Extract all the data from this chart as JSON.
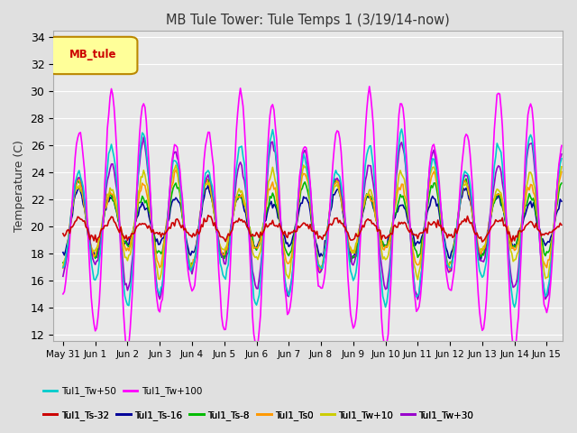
{
  "title": "MB Tule Tower: Tule Temps 1 (3/19/14-now)",
  "ylabel": "Temperature (C)",
  "ylim": [
    11.5,
    34.5
  ],
  "yticks": [
    12,
    14,
    16,
    18,
    20,
    22,
    24,
    26,
    28,
    30,
    32,
    34
  ],
  "background_color": "#e0e0e0",
  "plot_bg_color": "#e8e8e8",
  "grid_color": "white",
  "legend_box_label": "MB_tule",
  "series": [
    {
      "name": "Tul1_Ts-32",
      "color": "#cc0000",
      "lw": 1.2,
      "amp": 0.6,
      "base": 19.8,
      "phase": 0.0
    },
    {
      "name": "Tul1_Ts-16",
      "color": "#000099",
      "lw": 1.2,
      "amp": 2.0,
      "base": 20.2,
      "phase": 0.1
    },
    {
      "name": "Tul1_Ts-8",
      "color": "#00bb00",
      "lw": 1.2,
      "amp": 2.5,
      "base": 20.3,
      "phase": 0.1
    },
    {
      "name": "Tul1_Ts0",
      "color": "#ff9900",
      "lw": 1.2,
      "amp": 2.8,
      "base": 20.4,
      "phase": 0.1
    },
    {
      "name": "Tul1_Tw+10",
      "color": "#cccc00",
      "lw": 1.2,
      "amp": 3.2,
      "base": 20.4,
      "phase": 0.1
    },
    {
      "name": "Tul1_Tw+30",
      "color": "#9900cc",
      "lw": 1.2,
      "amp": 4.5,
      "base": 20.5,
      "phase": 0.05
    },
    {
      "name": "Tul1_Tw+50",
      "color": "#00cccc",
      "lw": 1.2,
      "amp": 5.0,
      "base": 20.5,
      "phase": 0.05
    },
    {
      "name": "Tul1_Tw+100",
      "color": "#ff00ff",
      "lw": 1.2,
      "amp": 7.5,
      "base": 20.5,
      "phase": 0.0
    }
  ],
  "num_days": 15.5,
  "seed": 0
}
